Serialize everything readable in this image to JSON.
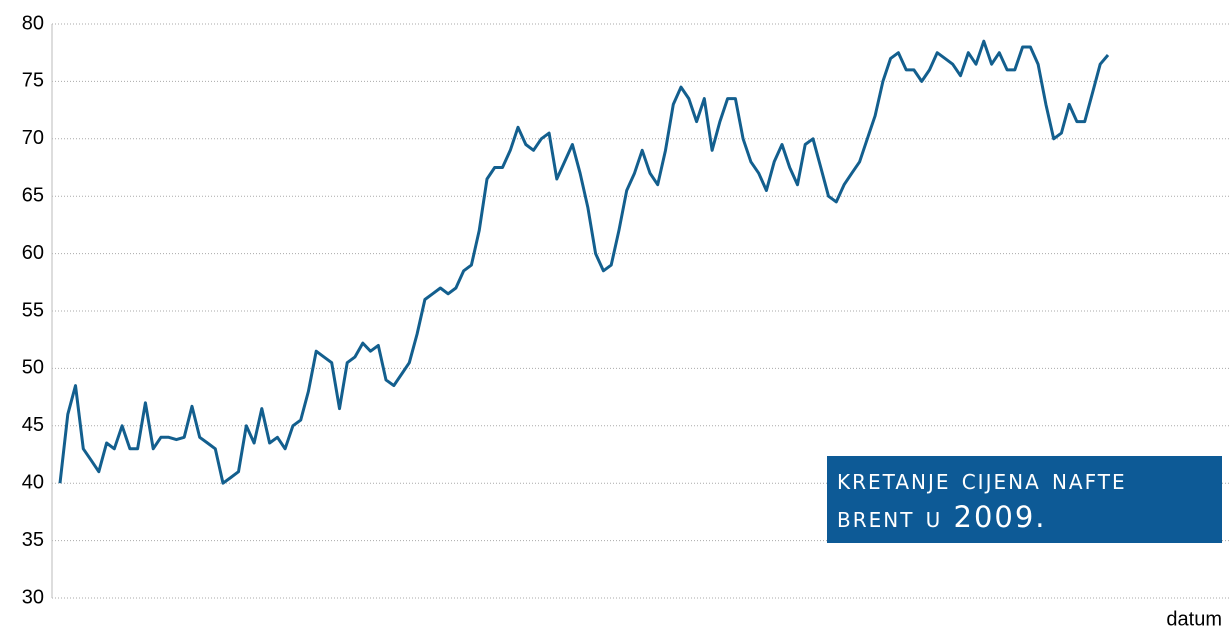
{
  "chart_data": {
    "type": "line",
    "title": "kretanje cijena nafte brent u 2009.",
    "x_label": "datum",
    "series": [
      {
        "color": "#135f8e",
        "values": [
          40,
          46,
          48.5,
          43,
          42,
          41,
          43.5,
          43,
          45,
          43,
          43,
          47,
          43,
          44,
          44,
          43.8,
          44,
          46.7,
          44,
          43.5,
          43,
          40,
          40.5,
          41,
          45,
          43.5,
          46.5,
          43.5,
          44,
          43,
          45,
          45.5,
          48,
          51.5,
          51,
          50.5,
          46.5,
          50.5,
          51,
          52.2,
          51.5,
          52,
          49,
          48.5,
          49.5,
          50.5,
          53,
          56,
          56.5,
          57,
          56.5,
          57,
          58.5,
          59,
          62,
          66.5,
          67.5,
          67.5,
          69,
          71,
          69.5,
          69,
          70,
          70.5,
          66.5,
          68,
          69.5,
          67,
          64,
          60,
          58.5,
          59,
          62,
          65.5,
          67,
          69,
          67,
          66,
          69,
          73,
          74.5,
          73.5,
          71.5,
          73.5,
          69,
          71.5,
          73.5,
          73.5,
          70,
          68,
          67,
          65.5,
          68,
          69.5,
          67.5,
          66,
          69.5,
          70,
          67.5,
          65,
          64.5,
          66,
          67,
          68,
          70,
          72,
          75,
          77,
          77.5,
          76,
          76,
          75,
          76,
          77.5,
          77,
          76.5,
          75.5,
          77.5,
          76.5,
          78.5,
          76.5,
          77.5,
          76,
          76,
          78,
          78,
          76.5,
          73,
          70,
          70.5,
          73,
          71.5,
          71.5,
          74,
          76.5,
          77.3
        ]
      }
    ],
    "ylim": [
      30,
      80
    ],
    "yticks": [
      30,
      35,
      40,
      45,
      50,
      55,
      60,
      65,
      70,
      75,
      80
    ],
    "grid": true
  }
}
